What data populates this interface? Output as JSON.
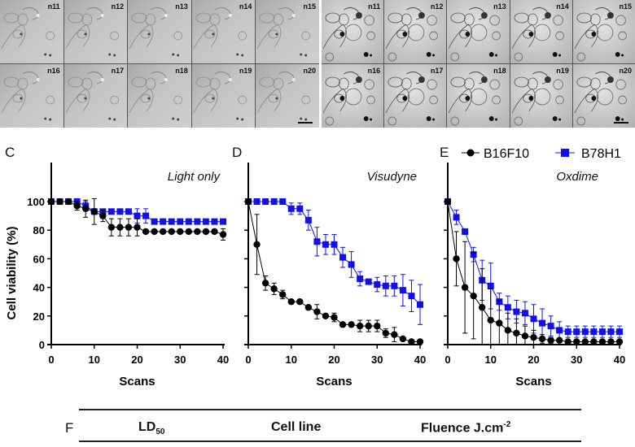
{
  "micrographs": {
    "left_labels": [
      "n11",
      "n12",
      "n13",
      "n14",
      "n15",
      "n16",
      "n17",
      "n18",
      "n19",
      "n20"
    ],
    "right_labels": [
      "n11",
      "n12",
      "n13",
      "n14",
      "n15",
      "n16",
      "n17",
      "n18",
      "n19",
      "n20"
    ]
  },
  "chart_data": [
    {
      "panel": "C",
      "type": "line",
      "title": "Light only",
      "xlabel": "Scans",
      "ylabel": "Cell viability (%)",
      "xlim": [
        0,
        40
      ],
      "ylim": [
        0,
        100
      ],
      "xticks": [
        "0",
        "10",
        "20",
        "30",
        "40"
      ],
      "yticks": [
        "0",
        "20",
        "40",
        "60",
        "80",
        "100"
      ],
      "x": [
        0,
        2,
        4,
        6,
        8,
        10,
        12,
        14,
        16,
        18,
        20,
        22,
        24,
        26,
        28,
        30,
        32,
        34,
        36,
        38,
        40
      ],
      "series": [
        {
          "name": "B16F10",
          "color": "#000000",
          "marker": "circle",
          "values": [
            100,
            100,
            100,
            97,
            95,
            93,
            90,
            82,
            82,
            82,
            82,
            79,
            79,
            79,
            79,
            79,
            79,
            79,
            79,
            79,
            77
          ],
          "errors": [
            0,
            0,
            0,
            3,
            6,
            9,
            4,
            6,
            6,
            6,
            6,
            0,
            0,
            0,
            0,
            0,
            0,
            0,
            0,
            0,
            4
          ]
        },
        {
          "name": "B78H1",
          "color": "#1010ee",
          "marker": "square",
          "values": [
            100,
            100,
            100,
            100,
            97,
            93,
            93,
            93,
            93,
            93,
            90,
            90,
            86,
            86,
            86,
            86,
            86,
            86,
            86,
            86,
            86
          ],
          "errors": [
            0,
            0,
            0,
            0,
            3,
            2,
            0,
            0,
            0,
            0,
            5,
            5,
            0,
            0,
            0,
            0,
            0,
            0,
            0,
            0,
            0
          ]
        }
      ]
    },
    {
      "panel": "D",
      "type": "line",
      "title": "Visudyne",
      "xlabel": "Scans",
      "ylabel": "",
      "xlim": [
        0,
        40
      ],
      "ylim": [
        0,
        100
      ],
      "xticks": [
        "0",
        "10",
        "20",
        "30",
        "40"
      ],
      "yticks": [],
      "x": [
        0,
        2,
        4,
        6,
        8,
        10,
        12,
        14,
        16,
        18,
        20,
        22,
        24,
        26,
        28,
        30,
        32,
        34,
        36,
        38,
        40
      ],
      "series": [
        {
          "name": "B16F10",
          "color": "#000000",
          "marker": "circle",
          "values": [
            100,
            70,
            43,
            39,
            35,
            30,
            30,
            26,
            23,
            20,
            19,
            14,
            14,
            13,
            13,
            13,
            8,
            7,
            4,
            2,
            2
          ],
          "errors": [
            0,
            21,
            5,
            4,
            3,
            0,
            0,
            0,
            5,
            0,
            3,
            0,
            0,
            4,
            4,
            4,
            3,
            5,
            0,
            0,
            0
          ]
        },
        {
          "name": "B78H1",
          "color": "#1010ee",
          "marker": "square",
          "values": [
            100,
            100,
            100,
            100,
            100,
            95,
            95,
            87,
            72,
            70,
            70,
            61,
            56,
            46,
            44,
            42,
            41,
            41,
            38,
            34,
            28
          ],
          "errors": [
            0,
            0,
            0,
            0,
            0,
            4,
            4,
            7,
            10,
            7,
            7,
            7,
            9,
            5,
            0,
            5,
            7,
            7,
            11,
            11,
            14
          ]
        }
      ]
    },
    {
      "panel": "E",
      "type": "line",
      "title": "Oxdime",
      "xlabel": "Scans",
      "ylabel": "",
      "xlim": [
        0,
        40
      ],
      "ylim": [
        0,
        100
      ],
      "xticks": [
        "0",
        "10",
        "20",
        "30",
        "40"
      ],
      "yticks": [],
      "legend": {
        "placement": "top",
        "entries": [
          "B16F10",
          "B78H1"
        ]
      },
      "x": [
        0,
        2,
        4,
        6,
        8,
        10,
        12,
        14,
        16,
        18,
        20,
        22,
        24,
        26,
        28,
        30,
        32,
        34,
        36,
        38,
        40
      ],
      "series": [
        {
          "name": "B16F10",
          "color": "#000000",
          "marker": "circle",
          "values": [
            100,
            60,
            40,
            34,
            26,
            17,
            15,
            10,
            8,
            6,
            5,
            4,
            3,
            3,
            2,
            2,
            2,
            2,
            2,
            2,
            2
          ],
          "errors": [
            0,
            19,
            32,
            30,
            27,
            22,
            16,
            12,
            10,
            7,
            5,
            3,
            2,
            1,
            1,
            1,
            1,
            1,
            1,
            1,
            1
          ]
        },
        {
          "name": "B78H1",
          "color": "#1010ee",
          "marker": "square",
          "values": [
            100,
            89,
            79,
            63,
            45,
            41,
            30,
            26,
            23,
            22,
            18,
            15,
            13,
            10,
            9,
            9,
            9,
            9,
            9,
            9,
            9
          ],
          "errors": [
            0,
            5,
            0,
            5,
            14,
            16,
            6,
            8,
            8,
            8,
            10,
            10,
            7,
            6,
            4,
            4,
            4,
            4,
            4,
            4,
            4
          ]
        }
      ]
    }
  ],
  "table_f": {
    "panel": "F",
    "headers": {
      "ld": "LD",
      "ld_sub": "50",
      "cell_line": "Cell line",
      "fluence": "Fluence J.cm",
      "fluence_sup": "-2"
    }
  }
}
